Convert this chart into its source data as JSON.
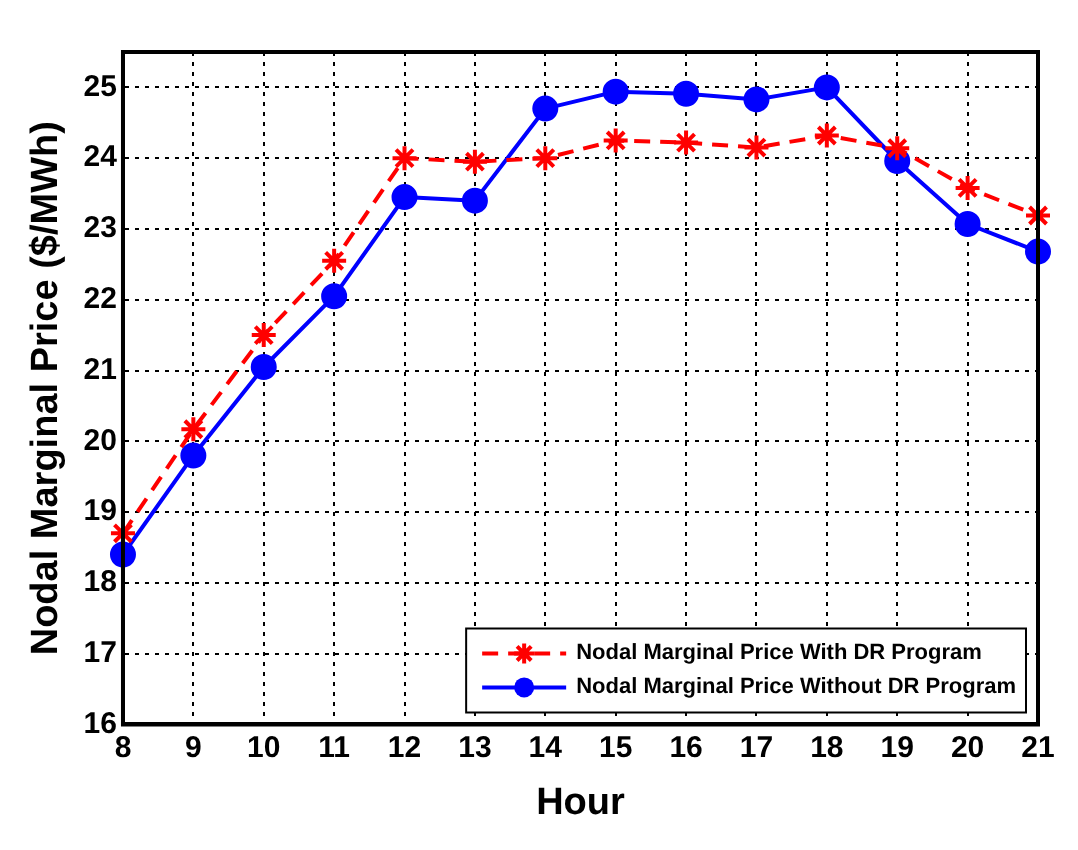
{
  "chart_data": {
    "type": "line",
    "xlabel": "Hour",
    "ylabel": "Nodal Marginal Price ($/MWh)",
    "x": [
      8,
      9,
      10,
      11,
      12,
      13,
      14,
      15,
      16,
      17,
      18,
      19,
      20,
      21
    ],
    "xlim": [
      8,
      21
    ],
    "xticks": [
      8,
      9,
      10,
      11,
      12,
      13,
      14,
      15,
      16,
      17,
      18,
      19,
      20,
      21
    ],
    "ylim": [
      16,
      25.5
    ],
    "yticks": [
      16,
      17,
      18,
      19,
      20,
      21,
      22,
      23,
      24,
      25
    ],
    "grid": true,
    "legend": "bottom right",
    "series": [
      {
        "name": "Nodal Marginal Price With DR Program",
        "color": "#ff0000",
        "marker": "cross",
        "line_style": "dashed",
        "values": [
          18.7,
          20.17,
          21.5,
          22.55,
          24.0,
          23.95,
          24.0,
          24.25,
          24.22,
          24.15,
          24.32,
          24.14,
          23.58,
          23.19
        ]
      },
      {
        "name": "Nodal Marginal Price Without DR Program",
        "color": "#0000ff",
        "marker": "circle",
        "line_style": "solid",
        "values": [
          18.4,
          19.8,
          21.05,
          22.05,
          23.45,
          23.4,
          24.7,
          24.94,
          24.91,
          24.83,
          25.0,
          23.96,
          23.07,
          22.68
        ]
      }
    ]
  }
}
